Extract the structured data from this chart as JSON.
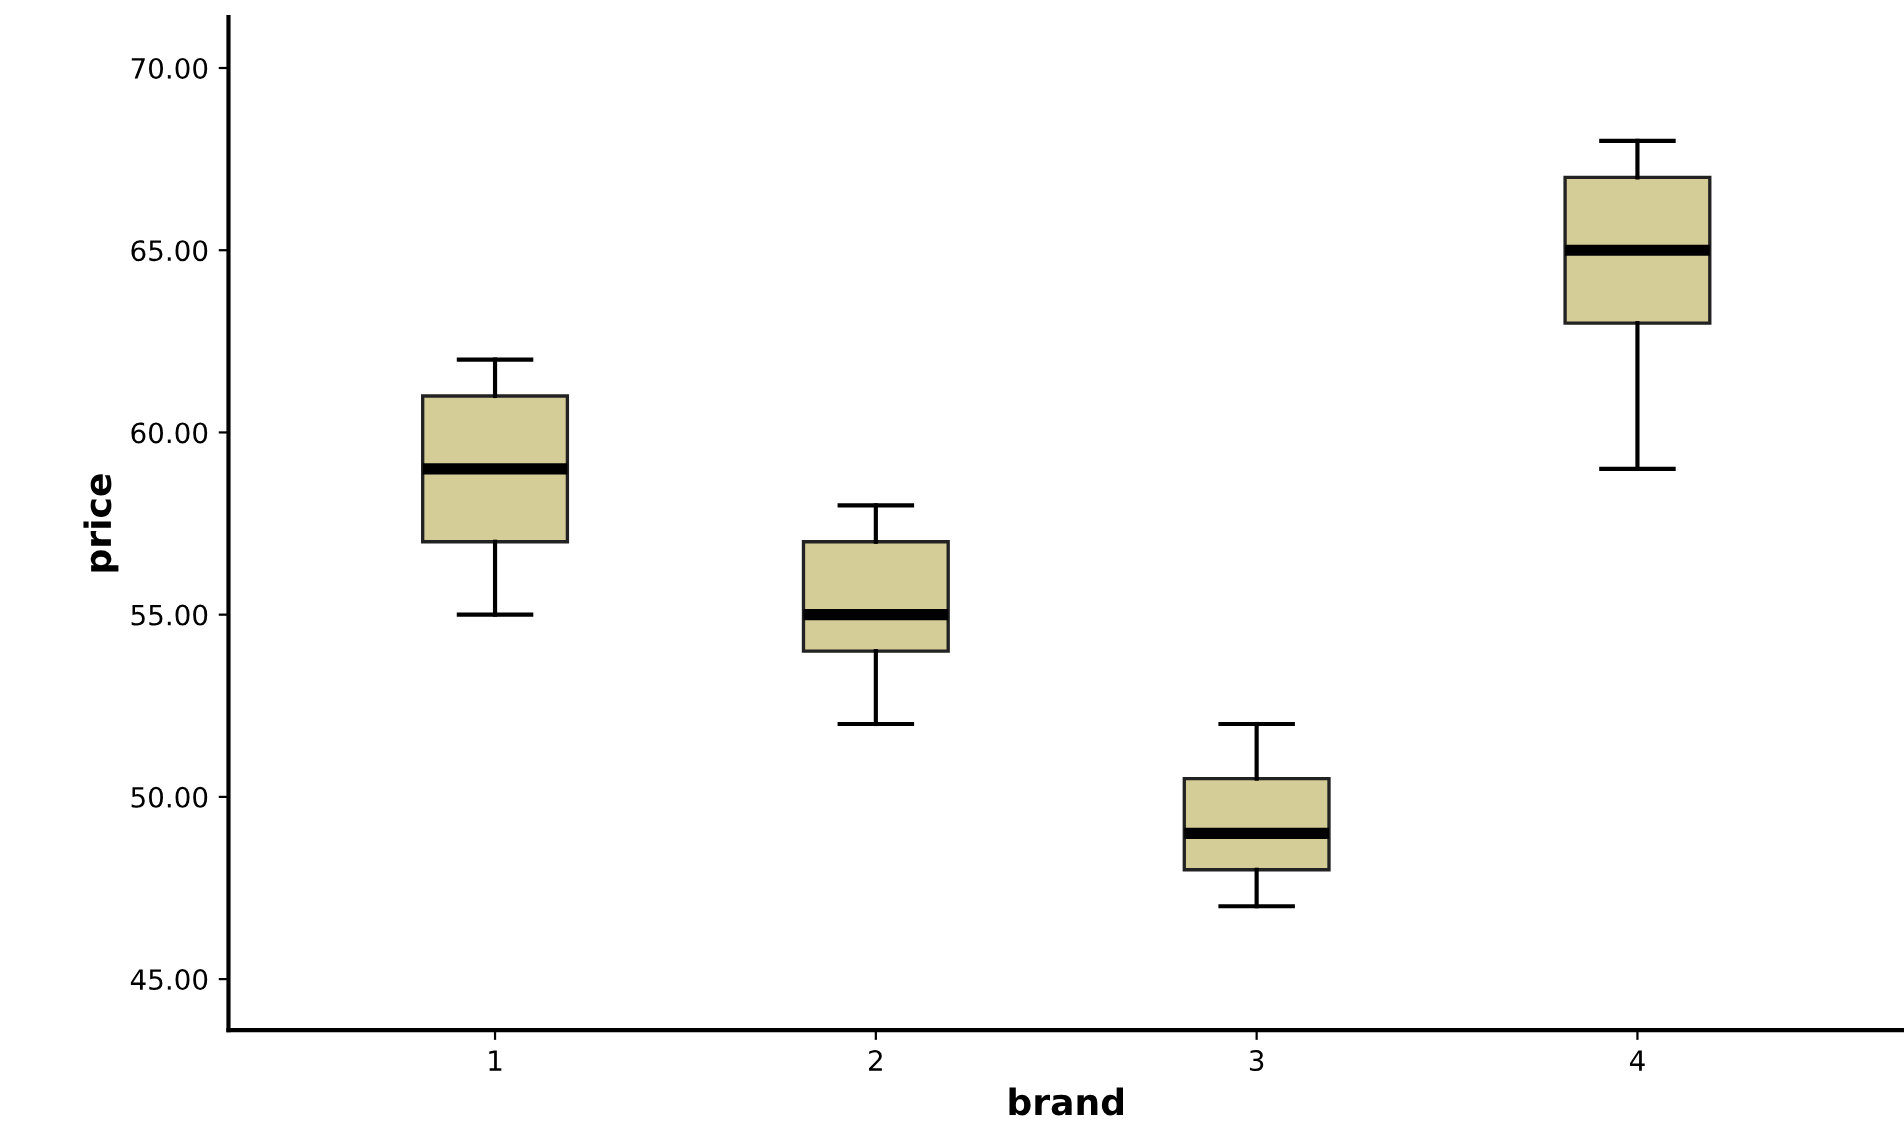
{
  "chart_data": {
    "type": "box",
    "xlabel": "brand",
    "ylabel": "price",
    "categories": [
      "1",
      "2",
      "3",
      "4"
    ],
    "color": "#d4cd98",
    "boxes": [
      {
        "low": 55,
        "q1": 57,
        "median": 59,
        "q3": 61,
        "high": 62
      },
      {
        "low": 52,
        "q1": 54,
        "median": 55,
        "q3": 57,
        "high": 58
      },
      {
        "low": 47,
        "q1": 48,
        "median": 49,
        "q3": 50.5,
        "high": 52
      },
      {
        "low": 59,
        "q1": 63,
        "median": 65,
        "q3": 67,
        "high": 68
      }
    ],
    "ylim": [
      43.6,
      71.4
    ],
    "yticks": [
      {
        "value": 45,
        "label": "45.00"
      },
      {
        "value": 50,
        "label": "50.00"
      },
      {
        "value": 55,
        "label": "55.00"
      },
      {
        "value": 60,
        "label": "60.00"
      },
      {
        "value": 65,
        "label": "65.00"
      },
      {
        "value": 70,
        "label": "70.00"
      }
    ],
    "grid": false
  }
}
